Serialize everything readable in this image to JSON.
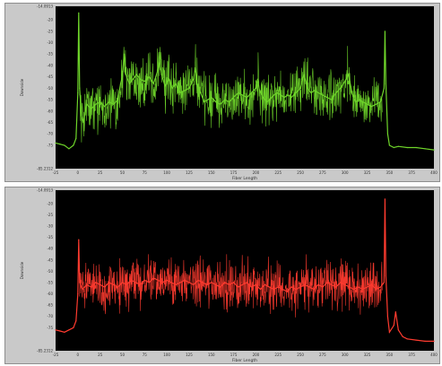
{
  "chart_data": [
    {
      "type": "line",
      "title": "",
      "xlabel": "Fiber Length",
      "ylabel": "Downside",
      "xlim": [
        -25,
        400
      ],
      "ylim": [
        -85.2312,
        -14.0913
      ],
      "grid": false,
      "series_color": "#6fd62a",
      "background": "#000000",
      "ytick_labels": [
        "-14.0913",
        "-20",
        "-25",
        "-30",
        "-35",
        "-40",
        "-45",
        "-50",
        "-55",
        "-60",
        "-65",
        "-70",
        "-75",
        "-85.2312"
      ],
      "ytick_values": [
        -14.0913,
        -20,
        -25,
        -30,
        -35,
        -40,
        -45,
        -50,
        -55,
        -60,
        -65,
        -70,
        -75,
        -85.2312
      ],
      "xtick_labels": [
        "-25",
        "0",
        "25",
        "50",
        "75",
        "100",
        "125",
        "150",
        "175",
        "200",
        "225",
        "250",
        "275",
        "300",
        "325",
        "350",
        "375",
        "400"
      ],
      "xtick_values": [
        -25,
        0,
        25,
        50,
        75,
        100,
        125,
        150,
        175,
        200,
        225,
        250,
        275,
        300,
        325,
        350,
        375,
        400
      ],
      "series": [
        {
          "values": [
            [
              -25,
              -74
            ],
            [
              -20,
              -74.5
            ],
            [
              -15,
              -75
            ],
            [
              -10,
              -76.5
            ],
            [
              -5,
              -75
            ],
            [
              -2,
              -72
            ],
            [
              0,
              -52
            ],
            [
              1,
              -17
            ],
            [
              2,
              -50
            ],
            [
              4,
              -62
            ],
            [
              6,
              -65
            ],
            [
              10,
              -57
            ],
            [
              15,
              -59
            ],
            [
              20,
              -57
            ],
            [
              25,
              -56
            ],
            [
              30,
              -58
            ],
            [
              35,
              -56
            ],
            [
              40,
              -57
            ],
            [
              45,
              -55
            ],
            [
              48,
              -48
            ],
            [
              50,
              -45
            ],
            [
              52,
              -35
            ],
            [
              54,
              -44
            ],
            [
              58,
              -48
            ],
            [
              62,
              -46
            ],
            [
              66,
              -44
            ],
            [
              70,
              -46
            ],
            [
              75,
              -47
            ],
            [
              80,
              -45
            ],
            [
              85,
              -48
            ],
            [
              90,
              -42
            ],
            [
              92,
              -38
            ],
            [
              94,
              -44
            ],
            [
              98,
              -49
            ],
            [
              102,
              -46
            ],
            [
              106,
              -50
            ],
            [
              110,
              -48
            ],
            [
              115,
              -52
            ],
            [
              120,
              -51
            ],
            [
              125,
              -50
            ],
            [
              130,
              -46
            ],
            [
              132,
              -41
            ],
            [
              134,
              -48
            ],
            [
              138,
              -52
            ],
            [
              142,
              -56
            ],
            [
              146,
              -55
            ],
            [
              150,
              -54
            ],
            [
              155,
              -56
            ],
            [
              160,
              -57
            ],
            [
              165,
              -55
            ],
            [
              170,
              -56
            ],
            [
              175,
              -54
            ],
            [
              180,
              -52
            ],
            [
              185,
              -53
            ],
            [
              190,
              -54
            ],
            [
              195,
              -52
            ],
            [
              200,
              -50
            ],
            [
              202,
              -46
            ],
            [
              204,
              -51
            ],
            [
              208,
              -54
            ],
            [
              212,
              -56
            ],
            [
              216,
              -55
            ],
            [
              220,
              -53
            ],
            [
              224,
              -52
            ],
            [
              228,
              -53
            ],
            [
              232,
              -54
            ],
            [
              236,
              -53
            ],
            [
              240,
              -54
            ],
            [
              245,
              -52
            ],
            [
              250,
              -50
            ],
            [
              254,
              -44
            ],
            [
              258,
              -50
            ],
            [
              262,
              -52
            ],
            [
              266,
              -51
            ],
            [
              270,
              -52
            ],
            [
              275,
              -53
            ],
            [
              280,
              -54
            ],
            [
              285,
              -55
            ],
            [
              290,
              -52
            ],
            [
              295,
              -50
            ],
            [
              300,
              -47
            ],
            [
              304,
              -44
            ],
            [
              308,
              -52
            ],
            [
              312,
              -56
            ],
            [
              316,
              -55
            ],
            [
              320,
              -56
            ],
            [
              325,
              -57
            ],
            [
              330,
              -58
            ],
            [
              335,
              -57
            ],
            [
              340,
              -56
            ],
            [
              344,
              -50
            ],
            [
              345,
              -25
            ],
            [
              346,
              -48
            ],
            [
              348,
              -70
            ],
            [
              350,
              -75
            ],
            [
              355,
              -76
            ],
            [
              360,
              -75.5
            ],
            [
              370,
              -76
            ],
            [
              380,
              -76
            ],
            [
              390,
              -76.5
            ],
            [
              400,
              -77
            ]
          ]
        }
      ]
    },
    {
      "type": "line",
      "title": "",
      "xlabel": "Fiber Length",
      "ylabel": "Downside",
      "xlim": [
        -25,
        400
      ],
      "ylim": [
        -85.2312,
        -14.0913
      ],
      "grid": false,
      "series_color": "#ff3b2f",
      "background": "#000000",
      "ytick_labels": [
        "-14.0913",
        "-20",
        "-25",
        "-30",
        "-35",
        "-40",
        "-45",
        "-50",
        "-55",
        "-60",
        "-65",
        "-70",
        "-75",
        "-85.2312"
      ],
      "ytick_values": [
        -14.0913,
        -20,
        -25,
        -30,
        -35,
        -40,
        -45,
        -50,
        -55,
        -60,
        -65,
        -70,
        -75,
        -85.2312
      ],
      "xtick_labels": [
        "-25",
        "0",
        "25",
        "50",
        "75",
        "100",
        "125",
        "150",
        "175",
        "200",
        "225",
        "250",
        "275",
        "300",
        "325",
        "350",
        "375",
        "400"
      ],
      "xtick_values": [
        -25,
        0,
        25,
        50,
        75,
        100,
        125,
        150,
        175,
        200,
        225,
        250,
        275,
        300,
        325,
        350,
        375,
        400
      ],
      "series": [
        {
          "values": [
            [
              -25,
              -76
            ],
            [
              -20,
              -76.5
            ],
            [
              -15,
              -77
            ],
            [
              -10,
              -76
            ],
            [
              -5,
              -75
            ],
            [
              -2,
              -72
            ],
            [
              0,
              -60
            ],
            [
              1,
              -36
            ],
            [
              2,
              -55
            ],
            [
              5,
              -58
            ],
            [
              10,
              -56
            ],
            [
              15,
              -57
            ],
            [
              20,
              -55
            ],
            [
              25,
              -56
            ],
            [
              30,
              -57
            ],
            [
              35,
              -55
            ],
            [
              40,
              -56
            ],
            [
              45,
              -57
            ],
            [
              50,
              -55
            ],
            [
              55,
              -56
            ],
            [
              60,
              -54
            ],
            [
              65,
              -55
            ],
            [
              70,
              -56
            ],
            [
              75,
              -54
            ],
            [
              80,
              -55
            ],
            [
              85,
              -53
            ],
            [
              90,
              -54
            ],
            [
              95,
              -55
            ],
            [
              100,
              -54
            ],
            [
              105,
              -55
            ],
            [
              110,
              -56
            ],
            [
              115,
              -55
            ],
            [
              120,
              -54
            ],
            [
              125,
              -55
            ],
            [
              130,
              -56
            ],
            [
              135,
              -54
            ],
            [
              140,
              -55
            ],
            [
              145,
              -56
            ],
            [
              150,
              -55
            ],
            [
              155,
              -56
            ],
            [
              160,
              -57
            ],
            [
              165,
              -55
            ],
            [
              170,
              -56
            ],
            [
              175,
              -55
            ],
            [
              180,
              -57
            ],
            [
              185,
              -56
            ],
            [
              190,
              -55
            ],
            [
              195,
              -57
            ],
            [
              200,
              -56
            ],
            [
              205,
              -58
            ],
            [
              210,
              -56
            ],
            [
              215,
              -57
            ],
            [
              220,
              -58
            ],
            [
              225,
              -57
            ],
            [
              230,
              -58
            ],
            [
              235,
              -59
            ],
            [
              240,
              -57
            ],
            [
              245,
              -58
            ],
            [
              250,
              -57
            ],
            [
              255,
              -56
            ],
            [
              260,
              -57
            ],
            [
              265,
              -58
            ],
            [
              270,
              -56
            ],
            [
              275,
              -57
            ],
            [
              280,
              -55
            ],
            [
              285,
              -56
            ],
            [
              290,
              -57
            ],
            [
              295,
              -55
            ],
            [
              300,
              -56
            ],
            [
              305,
              -57
            ],
            [
              310,
              -58
            ],
            [
              315,
              -57
            ],
            [
              320,
              -58
            ],
            [
              325,
              -57
            ],
            [
              330,
              -56
            ],
            [
              335,
              -58
            ],
            [
              340,
              -57
            ],
            [
              344,
              -55
            ],
            [
              345,
              -18
            ],
            [
              346,
              -52
            ],
            [
              348,
              -70
            ],
            [
              350,
              -77
            ],
            [
              355,
              -74
            ],
            [
              357,
              -68
            ],
            [
              360,
              -76
            ],
            [
              365,
              -79
            ],
            [
              370,
              -80
            ],
            [
              380,
              -80.5
            ],
            [
              390,
              -81
            ],
            [
              400,
              -81
            ]
          ]
        }
      ]
    }
  ]
}
